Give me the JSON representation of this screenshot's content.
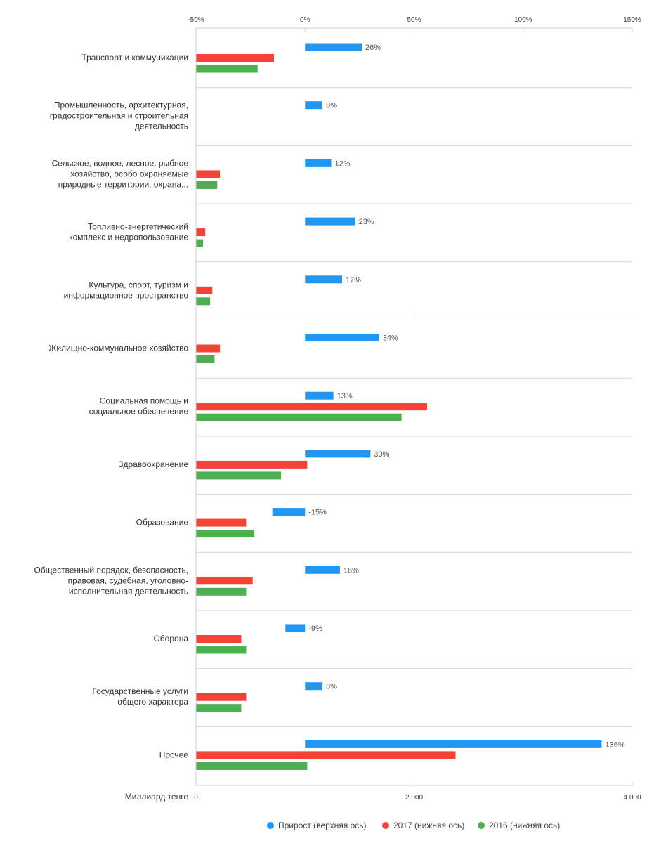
{
  "chart_data": {
    "type": "bar",
    "orientation": "horizontal",
    "categories": [
      [
        "Транспорт и коммуникации"
      ],
      [
        "Промышленность, архитектурная,",
        "градостроительная и строительная",
        "деятельность"
      ],
      [
        "Сельское, водное, лесное, рыбное",
        "хозяйство, особо охраняемые",
        "природные территории, охрана..."
      ],
      [
        "Топливно-энергетический",
        "комплекс и недропользование"
      ],
      [
        "Культура, спорт, туризм и",
        "информационное пространство"
      ],
      [
        "Жилищно-коммунальное хозяйство"
      ],
      [
        "Социальная помощь и",
        "социальное обеспечение"
      ],
      [
        "Здравоохранение"
      ],
      [
        "Образование"
      ],
      [
        "Общественный порядок, безопасность,",
        "правовая, судебная, уголовно-",
        "исполнительная деятельность"
      ],
      [
        "Оборона"
      ],
      [
        "Государственные услуги",
        "общего характера"
      ],
      [
        "Прочее"
      ]
    ],
    "series": [
      {
        "name": "Прирост (верхняя ось)",
        "axis": "top",
        "unit": "%",
        "color": "#2196F3",
        "values": [
          26,
          8,
          12,
          23,
          17,
          34,
          13,
          30,
          -15,
          16,
          -9,
          8,
          136
        ],
        "labels": [
          "26%",
          "8%",
          "12%",
          "23%",
          "17%",
          "34%",
          "13%",
          "30%",
          "-15%",
          "16%",
          "-9%",
          "8%",
          "136%"
        ]
      },
      {
        "name": "2017 (нижняя ось)",
        "axis": "bottom",
        "color": "#F44336",
        "values": [
          715,
          null,
          220,
          85,
          150,
          220,
          2120,
          1020,
          460,
          520,
          415,
          460,
          2380
        ]
      },
      {
        "name": "2016 (нижняя ось)",
        "axis": "bottom",
        "color": "#4CAF50",
        "values": [
          565,
          null,
          195,
          65,
          130,
          170,
          1885,
          780,
          535,
          460,
          460,
          415,
          1020
        ]
      }
    ],
    "top_axis": {
      "ticks": [
        "-50%",
        "0%",
        "50%",
        "100%",
        "150%"
      ],
      "tick_values": [
        -50,
        0,
        50,
        100,
        150
      ],
      "range": [
        -50,
        150
      ]
    },
    "bottom_axis": {
      "title": "Миллиард тенге",
      "ticks": [
        "0",
        "2 000",
        "4 000"
      ],
      "tick_values": [
        0,
        2000,
        4000
      ],
      "range": [
        0,
        4000
      ]
    },
    "legend": {
      "position": "bottom",
      "items": [
        "Прирост (верхняя ось)",
        "2017 (нижняя ось)",
        "2016 (нижняя ось)"
      ]
    },
    "grid": "horizontal separators between categories"
  }
}
